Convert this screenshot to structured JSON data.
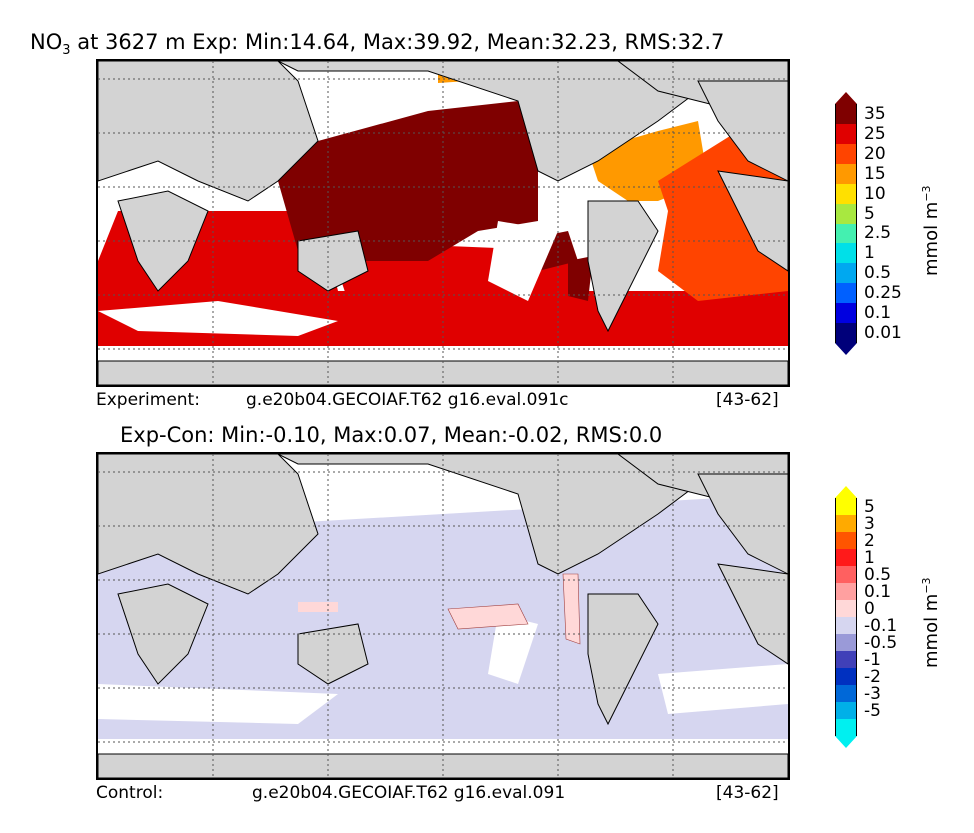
{
  "top_panel": {
    "title_var": "NO",
    "title_sub": "3",
    "title_rest": " at 3627 m Exp: Min:14.64, Max:39.92, Mean:32.23, RMS:32.7",
    "footer_left": "Experiment:",
    "footer_mid": "g.e20b04.GECOIAF.T62 g16.eval.091c",
    "footer_right": "[43-62]",
    "colorbar": {
      "labels": [
        "35",
        "25",
        "20",
        "15",
        "10",
        "5",
        "2.5",
        "1",
        "0.5",
        "0.25",
        "0.1",
        "0.01"
      ],
      "colors": [
        "#7f0000",
        "#e00000",
        "#ff4400",
        "#ff9900",
        "#ffe000",
        "#a8e840",
        "#44f0b0",
        "#00e0e8",
        "#00a8f0",
        "#0060ff",
        "#0000e0",
        "#00007a"
      ],
      "unit": "mmol m",
      "unit_exp": "−3",
      "over_color": "#000000",
      "under_color": "#000000"
    }
  },
  "bottom_panel": {
    "title": "Exp-Con: Min:-0.10, Max:0.07, Mean:-0.02, RMS:0.0",
    "footer_left": "Control:",
    "footer_mid": "g.e20b04.GECOIAF.T62 g16.eval.091",
    "footer_right": "[43-62]",
    "colorbar": {
      "labels": [
        "5",
        "3",
        "2",
        "1",
        "0.5",
        "0.1",
        "0",
        "-0.1",
        "-0.5",
        "-1",
        "-2",
        "-3",
        "-5"
      ],
      "colors": [
        "#ffff00",
        "#ffaa00",
        "#ff5500",
        "#ff1a1a",
        "#ff6060",
        "#ffa0a0",
        "#ffd8d8",
        "#d6d6f0",
        "#9a9ad8",
        "#4040b8",
        "#0030c0",
        "#0068d8",
        "#00b0e8",
        "#00f0f0"
      ],
      "unit": "mmol m",
      "unit_exp": "−3"
    }
  },
  "colors": {
    "land": "#d3d3d3",
    "ocean_gap": "#ffffff",
    "grid": "#555555"
  }
}
